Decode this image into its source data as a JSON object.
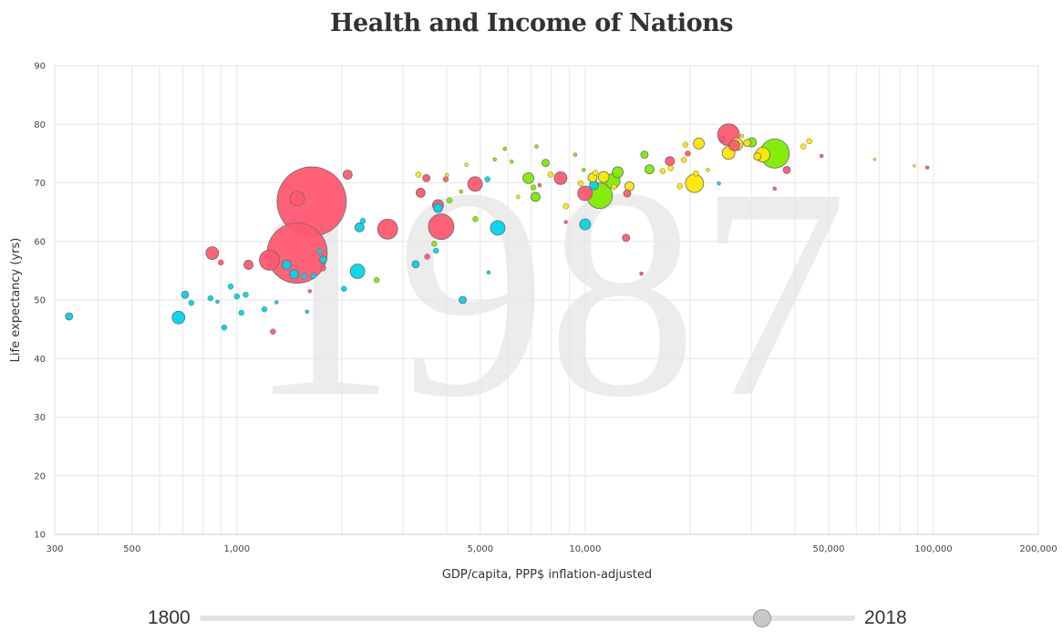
{
  "title": "Health and Income of Nations",
  "colors": {
    "red": "#ff5872",
    "cyan": "#00d5e9",
    "green": "#7feb00",
    "yellow": "#ffe700",
    "grid": "#e6e6e6",
    "year": "#e6e6e6"
  },
  "slider": {
    "min_label": "1800",
    "max_label": "2018",
    "min": 1800,
    "max": 2018,
    "value": 1987
  },
  "chart_data": {
    "type": "scatter",
    "year": "1987",
    "xlabel": "GDP/capita, PPP$ inflation-adjusted",
    "ylabel": "Life expectancy (yrs)",
    "x_scale": "log",
    "xlim": [
      300,
      200000
    ],
    "ylim": [
      10,
      90
    ],
    "x_ticks": [
      {
        "value": 300,
        "label": "300"
      },
      {
        "value": 500,
        "label": "500"
      },
      {
        "value": 1000,
        "label": "1,000"
      },
      {
        "value": 5000,
        "label": "5,000"
      },
      {
        "value": 10000,
        "label": "10,000"
      },
      {
        "value": 50000,
        "label": "50,000"
      },
      {
        "value": 100000,
        "label": "100,000"
      },
      {
        "value": 200000,
        "label": "200,000"
      }
    ],
    "y_ticks": [
      10,
      20,
      30,
      40,
      50,
      60,
      70,
      80,
      90
    ],
    "grid": true,
    "bubble_size": "population",
    "points": [
      {
        "x": 1640,
        "y": 66.8,
        "s": 38,
        "c": "red"
      },
      {
        "x": 1490,
        "y": 58.0,
        "s": 33,
        "c": "red"
      },
      {
        "x": 1490,
        "y": 67.3,
        "s": 8,
        "c": "red"
      },
      {
        "x": 1240,
        "y": 56.8,
        "s": 11,
        "c": "red"
      },
      {
        "x": 2710,
        "y": 62.1,
        "s": 11,
        "c": "red"
      },
      {
        "x": 3860,
        "y": 62.5,
        "s": 14,
        "c": "red"
      },
      {
        "x": 4830,
        "y": 69.8,
        "s": 8,
        "c": "red"
      },
      {
        "x": 8500,
        "y": 70.8,
        "s": 7,
        "c": "red"
      },
      {
        "x": 9990,
        "y": 68.2,
        "s": 8,
        "c": "red"
      },
      {
        "x": 25800,
        "y": 78.2,
        "s": 12,
        "c": "red"
      },
      {
        "x": 26800,
        "y": 76.4,
        "s": 6,
        "c": "red"
      },
      {
        "x": 2080,
        "y": 71.4,
        "s": 5,
        "c": "red"
      },
      {
        "x": 850,
        "y": 58.0,
        "s": 7,
        "c": "red"
      },
      {
        "x": 1080,
        "y": 56.0,
        "s": 5,
        "c": "red"
      },
      {
        "x": 3370,
        "y": 68.3,
        "s": 5,
        "c": "red"
      },
      {
        "x": 3500,
        "y": 70.8,
        "s": 4,
        "c": "red"
      },
      {
        "x": 3980,
        "y": 70.6,
        "s": 3,
        "c": "red"
      },
      {
        "x": 3780,
        "y": 66.2,
        "s": 6,
        "c": "red"
      },
      {
        "x": 3520,
        "y": 57.4,
        "s": 3,
        "c": "red"
      },
      {
        "x": 13200,
        "y": 68.2,
        "s": 4,
        "c": "red"
      },
      {
        "x": 13100,
        "y": 60.6,
        "s": 4,
        "c": "red"
      },
      {
        "x": 1270,
        "y": 44.6,
        "s": 3,
        "c": "red"
      },
      {
        "x": 900,
        "y": 56.4,
        "s": 3,
        "c": "red"
      },
      {
        "x": 37900,
        "y": 72.2,
        "s": 4,
        "c": "red"
      },
      {
        "x": 17500,
        "y": 73.7,
        "s": 5,
        "c": "red"
      },
      {
        "x": 1770,
        "y": 55.4,
        "s": 3,
        "c": "red"
      },
      {
        "x": 1620,
        "y": 51.5,
        "s": 2,
        "c": "red"
      },
      {
        "x": 14500,
        "y": 54.5,
        "s": 2,
        "c": "red"
      },
      {
        "x": 8800,
        "y": 63.3,
        "s": 2,
        "c": "red"
      },
      {
        "x": 35000,
        "y": 69.0,
        "s": 2,
        "c": "red"
      },
      {
        "x": 96000,
        "y": 72.6,
        "s": 2,
        "c": "red"
      },
      {
        "x": 47700,
        "y": 74.6,
        "s": 2,
        "c": "red"
      },
      {
        "x": 19700,
        "y": 75.0,
        "s": 3,
        "c": "red"
      },
      {
        "x": 7400,
        "y": 69.6,
        "s": 2,
        "c": "red"
      },
      {
        "x": 24800,
        "y": 77.5,
        "s": 3,
        "c": "red"
      },
      {
        "x": 2220,
        "y": 54.9,
        "s": 8,
        "c": "cyan"
      },
      {
        "x": 680,
        "y": 47.0,
        "s": 7,
        "c": "cyan"
      },
      {
        "x": 5610,
        "y": 62.3,
        "s": 8,
        "c": "cyan"
      },
      {
        "x": 10000,
        "y": 62.9,
        "s": 6,
        "c": "cyan"
      },
      {
        "x": 1460,
        "y": 54.4,
        "s": 5,
        "c": "cyan"
      },
      {
        "x": 1390,
        "y": 56.0,
        "s": 5,
        "c": "cyan"
      },
      {
        "x": 3780,
        "y": 65.7,
        "s": 5,
        "c": "cyan"
      },
      {
        "x": 2250,
        "y": 62.4,
        "s": 5,
        "c": "cyan"
      },
      {
        "x": 330,
        "y": 47.2,
        "s": 4,
        "c": "cyan"
      },
      {
        "x": 710,
        "y": 50.9,
        "s": 4,
        "c": "cyan"
      },
      {
        "x": 1770,
        "y": 56.9,
        "s": 4,
        "c": "cyan"
      },
      {
        "x": 3260,
        "y": 56.1,
        "s": 4,
        "c": "cyan"
      },
      {
        "x": 4450,
        "y": 50.0,
        "s": 4,
        "c": "cyan"
      },
      {
        "x": 2300,
        "y": 63.5,
        "s": 3,
        "c": "cyan"
      },
      {
        "x": 840,
        "y": 50.3,
        "s": 3,
        "c": "cyan"
      },
      {
        "x": 740,
        "y": 49.5,
        "s": 3,
        "c": "cyan"
      },
      {
        "x": 1000,
        "y": 50.6,
        "s": 3,
        "c": "cyan"
      },
      {
        "x": 1030,
        "y": 47.8,
        "s": 3,
        "c": "cyan"
      },
      {
        "x": 920,
        "y": 45.3,
        "s": 3,
        "c": "cyan"
      },
      {
        "x": 1060,
        "y": 50.9,
        "s": 3,
        "c": "cyan"
      },
      {
        "x": 1200,
        "y": 48.4,
        "s": 3,
        "c": "cyan"
      },
      {
        "x": 1560,
        "y": 54.1,
        "s": 3,
        "c": "cyan"
      },
      {
        "x": 1660,
        "y": 54.1,
        "s": 3,
        "c": "cyan"
      },
      {
        "x": 1730,
        "y": 58.3,
        "s": 3,
        "c": "cyan"
      },
      {
        "x": 2030,
        "y": 51.9,
        "s": 3,
        "c": "cyan"
      },
      {
        "x": 3730,
        "y": 58.4,
        "s": 3,
        "c": "cyan"
      },
      {
        "x": 5240,
        "y": 70.6,
        "s": 3,
        "c": "cyan"
      },
      {
        "x": 10600,
        "y": 69.6,
        "s": 5,
        "c": "cyan"
      },
      {
        "x": 960,
        "y": 52.3,
        "s": 3,
        "c": "cyan"
      },
      {
        "x": 1300,
        "y": 49.6,
        "s": 2,
        "c": "cyan"
      },
      {
        "x": 1590,
        "y": 48.0,
        "s": 2,
        "c": "cyan"
      },
      {
        "x": 5280,
        "y": 54.7,
        "s": 2,
        "c": "cyan"
      },
      {
        "x": 24200,
        "y": 69.9,
        "s": 2,
        "c": "cyan"
      },
      {
        "x": 880,
        "y": 49.7,
        "s": 2,
        "c": "cyan"
      },
      {
        "x": 11000,
        "y": 67.8,
        "s": 14,
        "c": "green"
      },
      {
        "x": 35000,
        "y": 75.0,
        "s": 16,
        "c": "green"
      },
      {
        "x": 12000,
        "y": 70.3,
        "s": 8,
        "c": "green"
      },
      {
        "x": 6870,
        "y": 70.8,
        "s": 6,
        "c": "green"
      },
      {
        "x": 7200,
        "y": 67.6,
        "s": 5,
        "c": "green"
      },
      {
        "x": 12400,
        "y": 71.8,
        "s": 6,
        "c": "green"
      },
      {
        "x": 15300,
        "y": 72.3,
        "s": 5,
        "c": "green"
      },
      {
        "x": 7700,
        "y": 73.4,
        "s": 4,
        "c": "green"
      },
      {
        "x": 30100,
        "y": 76.9,
        "s": 5,
        "c": "green"
      },
      {
        "x": 14800,
        "y": 74.8,
        "s": 4,
        "c": "green"
      },
      {
        "x": 3690,
        "y": 59.6,
        "s": 3,
        "c": "green"
      },
      {
        "x": 4840,
        "y": 63.8,
        "s": 3,
        "c": "green"
      },
      {
        "x": 4080,
        "y": 67.0,
        "s": 3,
        "c": "green"
      },
      {
        "x": 2520,
        "y": 53.4,
        "s": 3,
        "c": "green"
      },
      {
        "x": 7100,
        "y": 69.2,
        "s": 3,
        "c": "green"
      },
      {
        "x": 9900,
        "y": 72.2,
        "s": 2,
        "c": "green"
      },
      {
        "x": 9360,
        "y": 74.8,
        "s": 2,
        "c": "green"
      },
      {
        "x": 4400,
        "y": 68.5,
        "s": 2,
        "c": "green"
      },
      {
        "x": 5500,
        "y": 74.0,
        "s": 2,
        "c": "green"
      },
      {
        "x": 5880,
        "y": 75.8,
        "s": 2,
        "c": "green"
      },
      {
        "x": 7250,
        "y": 76.2,
        "s": 2,
        "c": "green"
      },
      {
        "x": 6150,
        "y": 73.6,
        "s": 2,
        "c": "green"
      },
      {
        "x": 20600,
        "y": 69.9,
        "s": 10,
        "c": "yellow"
      },
      {
        "x": 32300,
        "y": 74.8,
        "s": 8,
        "c": "yellow"
      },
      {
        "x": 25800,
        "y": 75.1,
        "s": 7,
        "c": "yellow"
      },
      {
        "x": 27200,
        "y": 76.6,
        "s": 7,
        "c": "yellow"
      },
      {
        "x": 21200,
        "y": 76.7,
        "s": 6,
        "c": "yellow"
      },
      {
        "x": 11300,
        "y": 71.0,
        "s": 6,
        "c": "yellow"
      },
      {
        "x": 10500,
        "y": 70.9,
        "s": 5,
        "c": "yellow"
      },
      {
        "x": 13400,
        "y": 69.4,
        "s": 5,
        "c": "yellow"
      },
      {
        "x": 29200,
        "y": 76.8,
        "s": 4,
        "c": "yellow"
      },
      {
        "x": 31200,
        "y": 74.5,
        "s": 4,
        "c": "yellow"
      },
      {
        "x": 7950,
        "y": 71.4,
        "s": 3,
        "c": "yellow"
      },
      {
        "x": 17600,
        "y": 72.5,
        "s": 3,
        "c": "yellow"
      },
      {
        "x": 16700,
        "y": 72.0,
        "s": 3,
        "c": "yellow"
      },
      {
        "x": 19200,
        "y": 73.9,
        "s": 3,
        "c": "yellow"
      },
      {
        "x": 19400,
        "y": 76.5,
        "s": 3,
        "c": "yellow"
      },
      {
        "x": 18700,
        "y": 69.4,
        "s": 3,
        "c": "yellow"
      },
      {
        "x": 20800,
        "y": 71.6,
        "s": 3,
        "c": "yellow"
      },
      {
        "x": 44000,
        "y": 77.1,
        "s": 3,
        "c": "yellow"
      },
      {
        "x": 42300,
        "y": 76.2,
        "s": 3,
        "c": "yellow"
      },
      {
        "x": 8800,
        "y": 66.0,
        "s": 3,
        "c": "yellow"
      },
      {
        "x": 9700,
        "y": 69.9,
        "s": 3,
        "c": "yellow"
      },
      {
        "x": 10700,
        "y": 71.7,
        "s": 3,
        "c": "yellow"
      },
      {
        "x": 12100,
        "y": 69.3,
        "s": 3,
        "c": "yellow"
      },
      {
        "x": 3320,
        "y": 71.4,
        "s": 3,
        "c": "yellow"
      },
      {
        "x": 4010,
        "y": 71.3,
        "s": 2,
        "c": "yellow"
      },
      {
        "x": 4560,
        "y": 73.1,
        "s": 2,
        "c": "yellow"
      },
      {
        "x": 6420,
        "y": 67.6,
        "s": 2,
        "c": "yellow"
      },
      {
        "x": 22500,
        "y": 72.2,
        "s": 2,
        "c": "yellow"
      },
      {
        "x": 67800,
        "y": 74.0,
        "s": 1.5,
        "c": "yellow"
      },
      {
        "x": 88000,
        "y": 72.9,
        "s": 1.5,
        "c": "yellow"
      },
      {
        "x": 28200,
        "y": 78.0,
        "s": 2,
        "c": "yellow"
      }
    ]
  }
}
